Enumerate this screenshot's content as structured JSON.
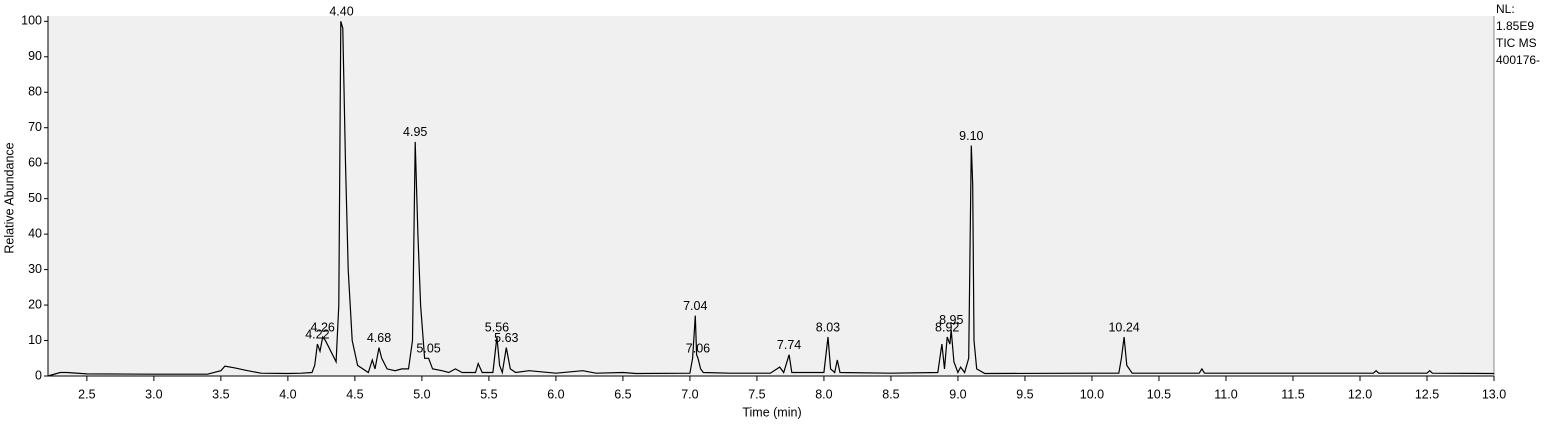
{
  "chart_data": {
    "type": "line",
    "x_label": "Time (min)",
    "y_label": "Relative Abundance",
    "side_labels": [
      "NL:",
      "1.85E9",
      "TIC  MS",
      "400176-"
    ],
    "xlim": [
      2.21,
      13.0
    ],
    "ylim": [
      0,
      101.5
    ],
    "xticks": [
      {
        "value": 2.5,
        "label": "2.5"
      },
      {
        "value": 3.0,
        "label": "3.0"
      },
      {
        "value": 3.5,
        "label": "3.5"
      },
      {
        "value": 4.0,
        "label": "4.0"
      },
      {
        "value": 4.5,
        "label": "4.5"
      },
      {
        "value": 5.0,
        "label": "5.0"
      },
      {
        "value": 5.5,
        "label": "5.5"
      },
      {
        "value": 6.0,
        "label": "6.0"
      },
      {
        "value": 6.5,
        "label": "6.5"
      },
      {
        "value": 7.0,
        "label": "7.0"
      },
      {
        "value": 7.5,
        "label": "7.5"
      },
      {
        "value": 8.0,
        "label": "8.0"
      },
      {
        "value": 8.5,
        "label": "8.5"
      },
      {
        "value": 9.0,
        "label": "9.0"
      },
      {
        "value": 9.5,
        "label": "9.5"
      },
      {
        "value": 10.0,
        "label": "10.0"
      },
      {
        "value": 10.5,
        "label": "10.5"
      },
      {
        "value": 11.0,
        "label": "11.0"
      },
      {
        "value": 11.5,
        "label": "11.5"
      },
      {
        "value": 12.0,
        "label": "12.0"
      },
      {
        "value": 12.5,
        "label": "12.5"
      },
      {
        "value": 13.0,
        "label": "13.0"
      }
    ],
    "yticks": [
      0,
      10,
      20,
      30,
      40,
      50,
      60,
      70,
      80,
      90,
      100
    ],
    "color": "#000000",
    "plot_background": "#f0f0f0",
    "x": [
      2.21,
      2.3,
      2.35,
      2.5,
      3.0,
      3.4,
      3.5,
      3.53,
      3.6,
      3.7,
      3.8,
      4.0,
      4.1,
      4.18,
      4.2,
      4.22,
      4.24,
      4.26,
      4.28,
      4.32,
      4.36,
      4.38,
      4.395,
      4.41,
      4.43,
      4.45,
      4.48,
      4.52,
      4.6,
      4.63,
      4.65,
      4.68,
      4.7,
      4.74,
      4.8,
      4.85,
      4.9,
      4.93,
      4.95,
      4.97,
      4.99,
      5.02,
      5.05,
      5.08,
      5.15,
      5.2,
      5.25,
      5.3,
      5.4,
      5.42,
      5.45,
      5.53,
      5.56,
      5.58,
      5.6,
      5.63,
      5.66,
      5.7,
      5.8,
      6.0,
      6.2,
      6.3,
      6.5,
      6.6,
      7.0,
      7.02,
      7.04,
      7.05,
      7.06,
      7.08,
      7.1,
      7.3,
      7.6,
      7.67,
      7.7,
      7.74,
      7.76,
      8.0,
      8.03,
      8.05,
      8.08,
      8.1,
      8.12,
      8.5,
      8.85,
      8.88,
      8.9,
      8.92,
      8.94,
      8.95,
      8.97,
      9.0,
      9.02,
      9.05,
      9.08,
      9.1,
      9.11,
      9.12,
      9.14,
      9.2,
      10.0,
      10.2,
      10.22,
      10.24,
      10.26,
      10.3,
      10.8,
      10.82,
      10.84,
      12.1,
      12.12,
      12.14,
      12.5,
      12.52,
      12.54,
      13.0
    ],
    "values": [
      0,
      1,
      1,
      0.6,
      0.5,
      0.5,
      1.5,
      2.8,
      2.3,
      1.5,
      0.8,
      0.7,
      0.8,
      1,
      3,
      9,
      7,
      11,
      10,
      7,
      4,
      20,
      100,
      98,
      60,
      30,
      10,
      3,
      1,
      4.5,
      2,
      8,
      5,
      2,
      1.5,
      2,
      2,
      10,
      66,
      40,
      20,
      5,
      5,
      2,
      1.5,
      1,
      2,
      1,
      1,
      3.5,
      1,
      1,
      11,
      3,
      1,
      8,
      2,
      1,
      1.5,
      0.8,
      1.5,
      0.8,
      1,
      0.7,
      0.8,
      5,
      17,
      6,
      5,
      2,
      1,
      0.8,
      0.8,
      2.5,
      1,
      6,
      1,
      1,
      11,
      2,
      1,
      4.5,
      1,
      0.8,
      1,
      9,
      2,
      11,
      9,
      13,
      4,
      1,
      2.5,
      1,
      5,
      65,
      54,
      10,
      2,
      0.7,
      0.8,
      0.8,
      5,
      11,
      3,
      0.8,
      0.8,
      2,
      0.8,
      0.8,
      1.5,
      0.8,
      0.8,
      1.5,
      0.8,
      0.7
    ],
    "peaks": [
      {
        "x": 4.22,
        "y": 9,
        "label": "4.22"
      },
      {
        "x": 4.26,
        "y": 11,
        "label": "4.26"
      },
      {
        "x": 4.4,
        "y": 100,
        "label": "4.40"
      },
      {
        "x": 4.68,
        "y": 8,
        "label": "4.68"
      },
      {
        "x": 4.95,
        "y": 66,
        "label": "4.95"
      },
      {
        "x": 5.05,
        "y": 5,
        "label": "5.05"
      },
      {
        "x": 5.56,
        "y": 11,
        "label": "5.56"
      },
      {
        "x": 5.63,
        "y": 8,
        "label": "5.63"
      },
      {
        "x": 7.04,
        "y": 17,
        "label": "7.04"
      },
      {
        "x": 7.06,
        "y": 5,
        "label": "7.06"
      },
      {
        "x": 7.74,
        "y": 6,
        "label": "7.74"
      },
      {
        "x": 8.03,
        "y": 11,
        "label": "8.03"
      },
      {
        "x": 8.92,
        "y": 11,
        "label": "8.92"
      },
      {
        "x": 8.95,
        "y": 13,
        "label": "8.95"
      },
      {
        "x": 9.1,
        "y": 65,
        "label": "9.10"
      },
      {
        "x": 10.24,
        "y": 11,
        "label": "10.24"
      }
    ]
  }
}
